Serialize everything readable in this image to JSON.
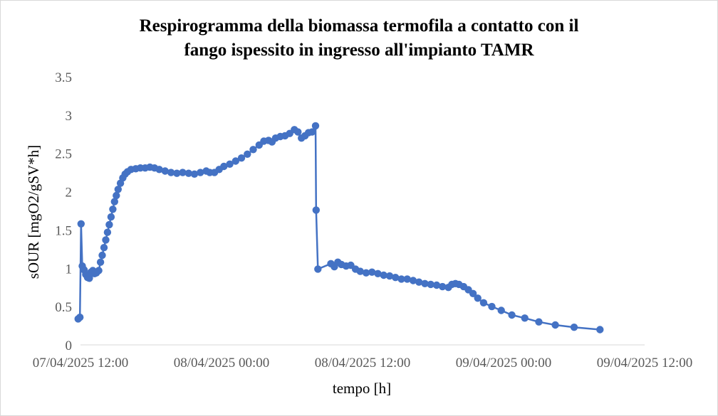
{
  "chart_data": {
    "type": "line",
    "title_lines": [
      "Respirogramma  della biomassa termofila a contatto con il",
      "fango ispessito in ingresso all'impianto TAMR"
    ],
    "xlabel": "tempo [h]",
    "ylabel": "sOUR [mgO2/gSV*h]",
    "x_unit": "hours since 07/04/2025 12:00",
    "xlim": [
      0,
      48
    ],
    "ylim": [
      0,
      3.5
    ],
    "x_ticks": [
      {
        "value": 0,
        "label": "07/04/2025 12:00"
      },
      {
        "value": 12,
        "label": "08/04/2025 00:00"
      },
      {
        "value": 24,
        "label": "08/04/2025 12:00"
      },
      {
        "value": 36,
        "label": "09/04/2025 00:00"
      },
      {
        "value": 48,
        "label": "09/04/2025 12:00"
      }
    ],
    "y_ticks": [
      {
        "value": 0,
        "label": "0"
      },
      {
        "value": 0.5,
        "label": "0.5"
      },
      {
        "value": 1,
        "label": "1"
      },
      {
        "value": 1.5,
        "label": "1.5"
      },
      {
        "value": 2,
        "label": "2"
      },
      {
        "value": 2.5,
        "label": "2.5"
      },
      {
        "value": 3,
        "label": "3"
      },
      {
        "value": 3.5,
        "label": "3.5"
      }
    ],
    "color": "#4472c4",
    "series": [
      {
        "name": "sOUR",
        "points": [
          [
            -0.2,
            0.34
          ],
          [
            -0.05,
            0.36
          ],
          [
            0.05,
            1.58
          ],
          [
            0.15,
            1.03
          ],
          [
            0.3,
            0.98
          ],
          [
            0.45,
            0.92
          ],
          [
            0.6,
            0.88
          ],
          [
            0.75,
            0.87
          ],
          [
            0.9,
            0.95
          ],
          [
            1.05,
            0.97
          ],
          [
            1.2,
            0.93
          ],
          [
            1.35,
            0.94
          ],
          [
            1.55,
            0.97
          ],
          [
            1.7,
            1.08
          ],
          [
            1.85,
            1.17
          ],
          [
            2.0,
            1.27
          ],
          [
            2.15,
            1.37
          ],
          [
            2.3,
            1.47
          ],
          [
            2.45,
            1.57
          ],
          [
            2.6,
            1.67
          ],
          [
            2.75,
            1.77
          ],
          [
            2.9,
            1.87
          ],
          [
            3.05,
            1.95
          ],
          [
            3.2,
            2.03
          ],
          [
            3.4,
            2.11
          ],
          [
            3.6,
            2.18
          ],
          [
            3.8,
            2.23
          ],
          [
            4.0,
            2.26
          ],
          [
            4.3,
            2.29
          ],
          [
            4.7,
            2.3
          ],
          [
            5.1,
            2.31
          ],
          [
            5.5,
            2.31
          ],
          [
            5.9,
            2.32
          ],
          [
            6.3,
            2.31
          ],
          [
            6.7,
            2.29
          ],
          [
            7.2,
            2.27
          ],
          [
            7.7,
            2.25
          ],
          [
            8.2,
            2.24
          ],
          [
            8.7,
            2.25
          ],
          [
            9.2,
            2.24
          ],
          [
            9.7,
            2.23
          ],
          [
            10.2,
            2.25
          ],
          [
            10.7,
            2.27
          ],
          [
            11.0,
            2.25
          ],
          [
            11.4,
            2.25
          ],
          [
            11.8,
            2.29
          ],
          [
            12.2,
            2.33
          ],
          [
            12.7,
            2.36
          ],
          [
            13.2,
            2.4
          ],
          [
            13.7,
            2.44
          ],
          [
            14.2,
            2.49
          ],
          [
            14.7,
            2.55
          ],
          [
            15.2,
            2.61
          ],
          [
            15.6,
            2.66
          ],
          [
            16.0,
            2.67
          ],
          [
            16.3,
            2.65
          ],
          [
            16.6,
            2.7
          ],
          [
            17.0,
            2.72
          ],
          [
            17.4,
            2.73
          ],
          [
            17.8,
            2.76
          ],
          [
            18.2,
            2.81
          ],
          [
            18.5,
            2.78
          ],
          [
            18.8,
            2.7
          ],
          [
            19.1,
            2.73
          ],
          [
            19.4,
            2.77
          ],
          [
            19.7,
            2.78
          ],
          [
            20.0,
            2.86
          ],
          [
            20.05,
            1.76
          ],
          [
            20.2,
            0.99
          ],
          [
            21.3,
            1.06
          ],
          [
            21.6,
            1.02
          ],
          [
            21.9,
            1.08
          ],
          [
            22.2,
            1.05
          ],
          [
            22.6,
            1.03
          ],
          [
            23.0,
            1.04
          ],
          [
            23.4,
            0.99
          ],
          [
            23.8,
            0.96
          ],
          [
            24.3,
            0.94
          ],
          [
            24.8,
            0.95
          ],
          [
            25.3,
            0.93
          ],
          [
            25.8,
            0.91
          ],
          [
            26.3,
            0.9
          ],
          [
            26.8,
            0.88
          ],
          [
            27.3,
            0.86
          ],
          [
            27.8,
            0.86
          ],
          [
            28.3,
            0.84
          ],
          [
            28.8,
            0.82
          ],
          [
            29.3,
            0.8
          ],
          [
            29.8,
            0.79
          ],
          [
            30.3,
            0.78
          ],
          [
            30.8,
            0.76
          ],
          [
            31.3,
            0.75
          ],
          [
            31.6,
            0.79
          ],
          [
            31.9,
            0.8
          ],
          [
            32.2,
            0.79
          ],
          [
            32.6,
            0.76
          ],
          [
            33.0,
            0.72
          ],
          [
            33.4,
            0.67
          ],
          [
            33.8,
            0.61
          ],
          [
            34.3,
            0.55
          ],
          [
            35.0,
            0.5
          ],
          [
            35.8,
            0.45
          ],
          [
            36.7,
            0.39
          ],
          [
            37.8,
            0.35
          ],
          [
            39.0,
            0.3
          ],
          [
            40.4,
            0.26
          ],
          [
            42.0,
            0.23
          ],
          [
            44.2,
            0.2
          ]
        ]
      }
    ]
  }
}
